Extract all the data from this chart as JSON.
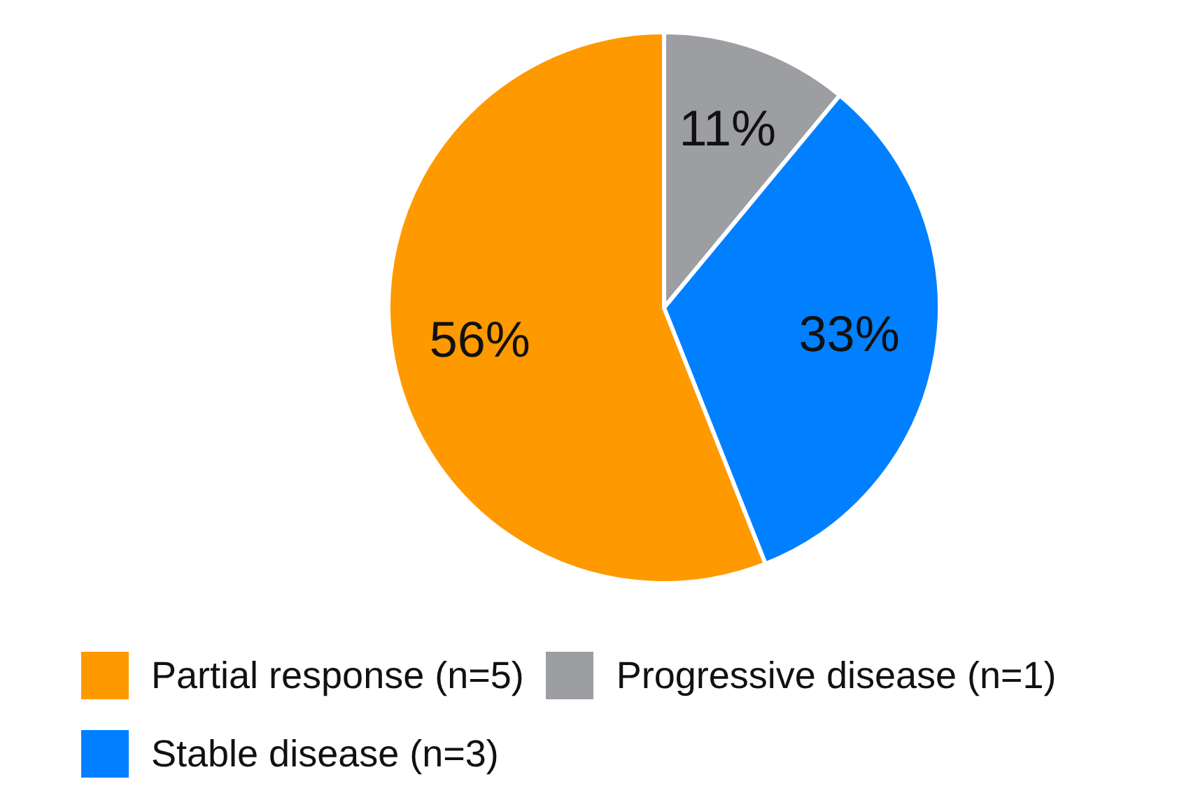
{
  "chart_data": {
    "type": "pie",
    "categories": [
      "Partial response (n=5)",
      "Progressive disease (n=1)",
      "Stable disease (n=3)"
    ],
    "values": [
      56,
      11,
      33
    ],
    "colors": [
      "#ff9900",
      "#9d9ea2",
      "#0080ff"
    ],
    "value_labels": [
      "56%",
      "11%",
      "33%"
    ],
    "legend": "bottom"
  }
}
